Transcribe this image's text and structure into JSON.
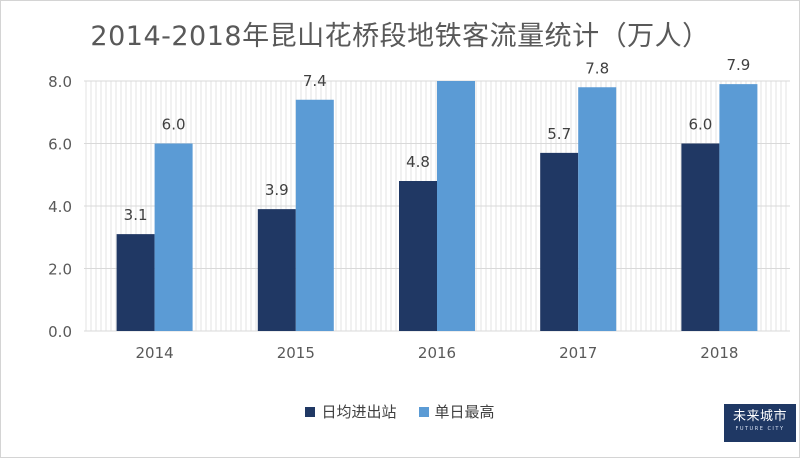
{
  "chart_data": {
    "type": "bar",
    "title": "2014-2018年昆山花桥段地铁客流量统计（万人）",
    "categories": [
      "2014",
      "2015",
      "2016",
      "2017",
      "2018"
    ],
    "series": [
      {
        "name": "日均进出站",
        "values": [
          3.1,
          3.9,
          4.8,
          5.7,
          6.0
        ],
        "color": "#203864",
        "labels": [
          "3.1",
          "3.9",
          "4.8",
          "5.7",
          "6.0"
        ]
      },
      {
        "name": "单日最高",
        "values": [
          6.0,
          7.4,
          8.0,
          7.8,
          7.9
        ],
        "color": "#5b9bd5",
        "labels": [
          "6.0",
          "7.4",
          "",
          "7.8",
          "7.9"
        ]
      }
    ],
    "ylim": [
      0,
      8
    ],
    "yticks": [
      0,
      2,
      4,
      6,
      8
    ],
    "ytick_labels": [
      "0.0",
      "2.0",
      "4.0",
      "6.0",
      "8.0"
    ],
    "grid": true,
    "legend_position": "bottom"
  },
  "logo": {
    "text": "未来城市",
    "subtext": "FUTURE CITY"
  }
}
